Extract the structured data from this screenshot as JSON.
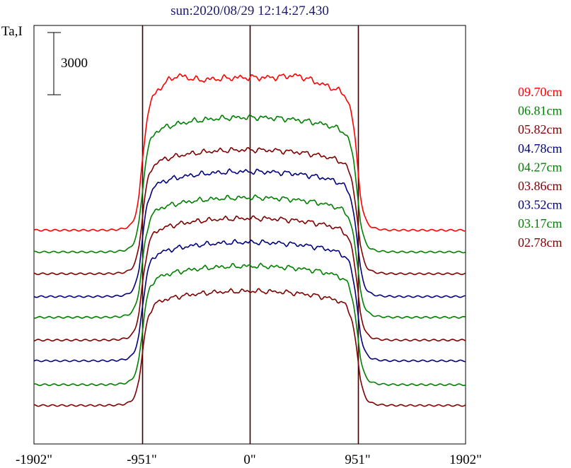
{
  "chart_data": {
    "type": "line",
    "title": "sun:2020/08/29 12:14:27.430",
    "ylabel": "Ta,I",
    "scale_bar_label": "3000",
    "scale_bar_value": 3000,
    "xlim": [
      -1902,
      1902
    ],
    "x_ticks": [
      -1902,
      -951,
      0,
      951,
      1902
    ],
    "x_tick_labels": [
      "-1902\"",
      "-951\"",
      "0\"",
      "951\"",
      "1902\""
    ],
    "vertical_lines": [
      -951,
      0,
      951
    ],
    "series": [
      {
        "name": "09.70cm",
        "color": "#ff0000",
        "offset": 9250,
        "amplitude": 7150
      },
      {
        "name": "06.81cm",
        "color": "#008000",
        "offset": 8200,
        "amplitude": 6300
      },
      {
        "name": "05.82cm",
        "color": "#800000",
        "offset": 7150,
        "amplitude": 5800
      },
      {
        "name": "04.78cm",
        "color": "#000080",
        "offset": 6050,
        "amplitude": 5850
      },
      {
        "name": "04.27cm",
        "color": "#008000",
        "offset": 5050,
        "amplitude": 5600
      },
      {
        "name": "03.86cm",
        "color": "#800000",
        "offset": 3950,
        "amplitude": 5700
      },
      {
        "name": "03.52cm",
        "color": "#000080",
        "offset": 2950,
        "amplitude": 5550
      },
      {
        "name": "03.17cm",
        "color": "#008000",
        "offset": 1800,
        "amplitude": 5550
      },
      {
        "name": "02.78cm",
        "color": "#800000",
        "offset": 800,
        "amplitude": 5350
      }
    ]
  }
}
